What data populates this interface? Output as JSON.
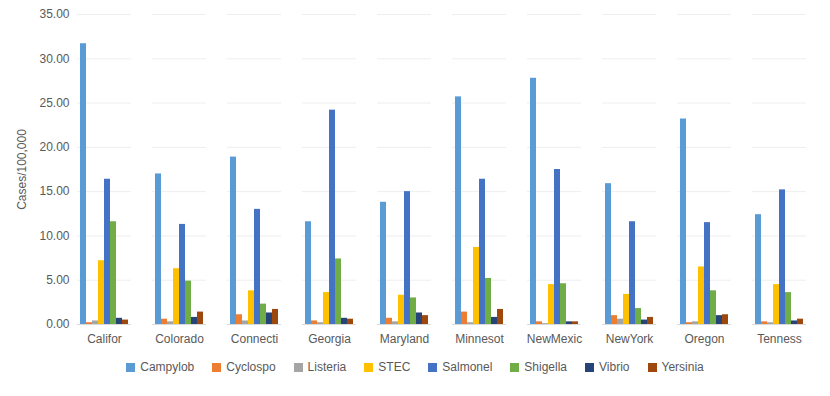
{
  "chart_data": {
    "type": "bar",
    "y_label": "Cases/100,000",
    "categories": [
      "Califor",
      "Colorado",
      "Connecti",
      "Georgia",
      "Maryland",
      "Minnesot",
      "NewMexic",
      "NewYork",
      "Oregon",
      "Tenness"
    ],
    "series": [
      {
        "name": "Campylob",
        "color": "#5B9BD5",
        "values": [
          31.7,
          17.0,
          18.9,
          11.6,
          13.8,
          25.7,
          27.8,
          15.9,
          23.2,
          12.4
        ]
      },
      {
        "name": "Cyclospo",
        "color": "#ED7D31",
        "values": [
          0.2,
          0.6,
          1.1,
          0.4,
          0.7,
          1.4,
          0.3,
          1.0,
          0.2,
          0.3
        ]
      },
      {
        "name": "Listeria",
        "color": "#A5A5A5",
        "values": [
          0.4,
          0.3,
          0.4,
          0.2,
          0.3,
          0.2,
          0.1,
          0.6,
          0.3,
          0.2
        ]
      },
      {
        "name": "STEC",
        "color": "#FFC000",
        "values": [
          7.2,
          6.3,
          3.8,
          3.6,
          3.3,
          8.7,
          4.5,
          3.4,
          6.5,
          4.5
        ]
      },
      {
        "name": "Salmonel",
        "color": "#4472C4",
        "values": [
          16.4,
          11.3,
          13.0,
          24.2,
          15.0,
          16.4,
          17.5,
          11.6,
          11.5,
          15.2
        ]
      },
      {
        "name": "Shigella",
        "color": "#70AD47",
        "values": [
          11.6,
          4.9,
          2.3,
          7.4,
          3.0,
          5.2,
          4.6,
          1.8,
          3.8,
          3.6
        ]
      },
      {
        "name": "Vibrio",
        "color": "#264478",
        "values": [
          0.7,
          0.8,
          1.3,
          0.7,
          1.3,
          0.8,
          0.3,
          0.5,
          1.0,
          0.4
        ]
      },
      {
        "name": "Yersinia",
        "color": "#9E480E",
        "values": [
          0.5,
          1.4,
          1.7,
          0.6,
          1.0,
          1.7,
          0.3,
          0.8,
          1.1,
          0.6
        ]
      }
    ],
    "ylim": [
      0,
      35
    ],
    "yticks": [
      {
        "value": 0,
        "label": "0.00"
      },
      {
        "value": 5,
        "label": "5.00"
      },
      {
        "value": 10,
        "label": "10.00"
      },
      {
        "value": 15,
        "label": "15.00"
      },
      {
        "value": 20,
        "label": "20.00"
      },
      {
        "value": 25,
        "label": "25.00"
      },
      {
        "value": 30,
        "label": "30.00"
      },
      {
        "value": 35,
        "label": "35.00"
      }
    ],
    "grid": true,
    "legend": "bottom"
  }
}
